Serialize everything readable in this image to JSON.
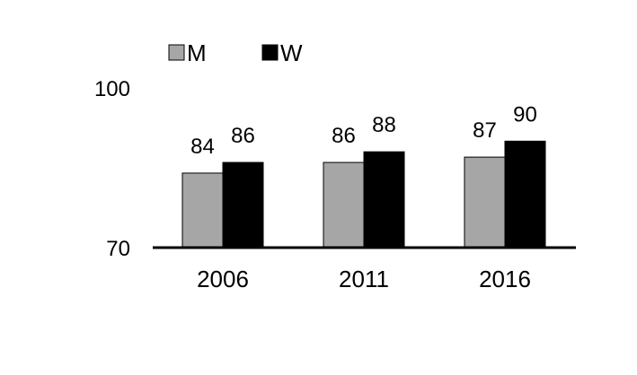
{
  "chart_data": {
    "type": "bar",
    "title": "",
    "xlabel": "",
    "ylabel": "",
    "categories": [
      "2006",
      "2011",
      "2016"
    ],
    "series": [
      {
        "name": "M",
        "values": [
          84,
          86,
          87
        ],
        "color": "#a6a6a6",
        "labels": [
          "84",
          "86",
          "87"
        ]
      },
      {
        "name": "W",
        "values": [
          86,
          88,
          90
        ],
        "color": "#000000",
        "labels": [
          "86",
          "88",
          "90"
        ]
      }
    ],
    "ylim": [
      70,
      100
    ],
    "yticks": [
      "70",
      "100"
    ],
    "grid": false,
    "legend_position": "top-left"
  }
}
